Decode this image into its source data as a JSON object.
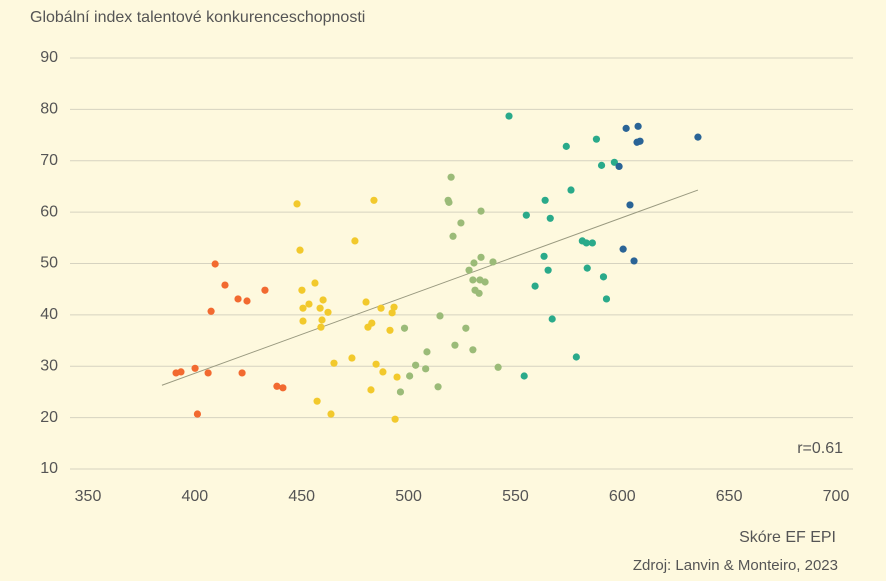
{
  "chart_data": {
    "type": "scatter",
    "title": "Globální index talentové konkurenceschopnosti",
    "x_label": "Skóre EF EPI",
    "source": "Zdroj: Lanvin & Monteiro, 2023",
    "annotation": "r=0.61",
    "xlim": [
      350,
      700
    ],
    "xticks": [
      350,
      400,
      450,
      500,
      550,
      600,
      650,
      700
    ],
    "ylim": [
      10,
      90
    ],
    "yticks": [
      10,
      20,
      30,
      40,
      50,
      60,
      70,
      80,
      90
    ],
    "grid": true,
    "trendline": {
      "color": "#9a9a80",
      "x": [
        384.6,
        635.4
      ],
      "y": [
        26.3,
        64.3
      ]
    },
    "series": [
      {
        "color": "#f26a30",
        "x": [
          391.2,
          393.5,
          400.1,
          406.2,
          401.2,
          407.6,
          409.5,
          414.1,
          420.2,
          424.4,
          432.8,
          422.1,
          438.4,
          441.2
        ],
        "y": [
          28.7,
          28.9,
          29.6,
          28.7,
          20.7,
          40.7,
          49.9,
          45.8,
          43.1,
          42.7,
          44.8,
          28.7,
          26.1,
          25.8
        ]
      },
      {
        "color": "#f2c92c",
        "x": [
          447.8,
          449.2,
          450.1,
          450.6,
          450.6,
          453.4,
          456.2,
          458.6,
          460,
          459.5,
          459,
          462.3,
          465.1,
          457.2,
          463.7,
          473.5,
          474.9,
          483.8,
          480.1,
          481,
          482.8,
          487.1,
          482.4,
          484.8,
          488,
          491.3,
          493.2,
          492.3,
          494.6,
          493.7
        ],
        "y": [
          61.6,
          52.6,
          44.8,
          41.3,
          38.8,
          42.1,
          46.2,
          41.3,
          42.9,
          39,
          37.6,
          40.5,
          30.6,
          23.2,
          20.7,
          31.6,
          54.4,
          62.3,
          42.5,
          37.6,
          38.4,
          41.3,
          25.4,
          30.4,
          28.9,
          37,
          41.5,
          40.4,
          27.9,
          19.7
        ]
      },
      {
        "color": "#9bbb78",
        "x": [
          496.2,
          498.1,
          500.5,
          503.3,
          508,
          508.6,
          513.8,
          514.7,
          518.5,
          518.9,
          519.9,
          520.8,
          521.7,
          524.5,
          526.8,
          528.3,
          530.1,
          530.6,
          530.1,
          531.1,
          533,
          533.9,
          533.9,
          533.4,
          535.8,
          539.5,
          541.9
        ],
        "y": [
          25,
          37.4,
          28.1,
          30.2,
          29.5,
          32.8,
          26,
          39.8,
          62.3,
          61.9,
          66.8,
          55.3,
          34.1,
          57.9,
          37.4,
          48.7,
          33.2,
          50.1,
          46.8,
          44.8,
          44.2,
          51.2,
          60.2,
          46.8,
          46.4,
          50.3,
          29.8
        ]
      },
      {
        "color": "#2aaa8a",
        "x": [
          547,
          555.1,
          554.1,
          559.2,
          563.9,
          563.4,
          565.3,
          566.3,
          567.2,
          573.8,
          576,
          578.5,
          581.3,
          583.2,
          586,
          583.6,
          587.9,
          590.3,
          591.2,
          592.6,
          596.3
        ],
        "y": [
          78.7,
          59.4,
          28.1,
          45.6,
          62.3,
          51.4,
          48.7,
          58.8,
          39.2,
          72.8,
          64.3,
          31.8,
          54.4,
          54,
          54,
          49.1,
          74.2,
          69.1,
          47.4,
          43.1,
          69.7
        ]
      },
      {
        "color": "#2a6496",
        "x": [
          598.5,
          601.8,
          600.4,
          603.6,
          605.5,
          606.9,
          607.4,
          608.3,
          635.4
        ],
        "y": [
          68.9,
          76.3,
          52.8,
          61.4,
          50.5,
          73.6,
          76.7,
          73.8,
          74.6
        ]
      }
    ]
  }
}
